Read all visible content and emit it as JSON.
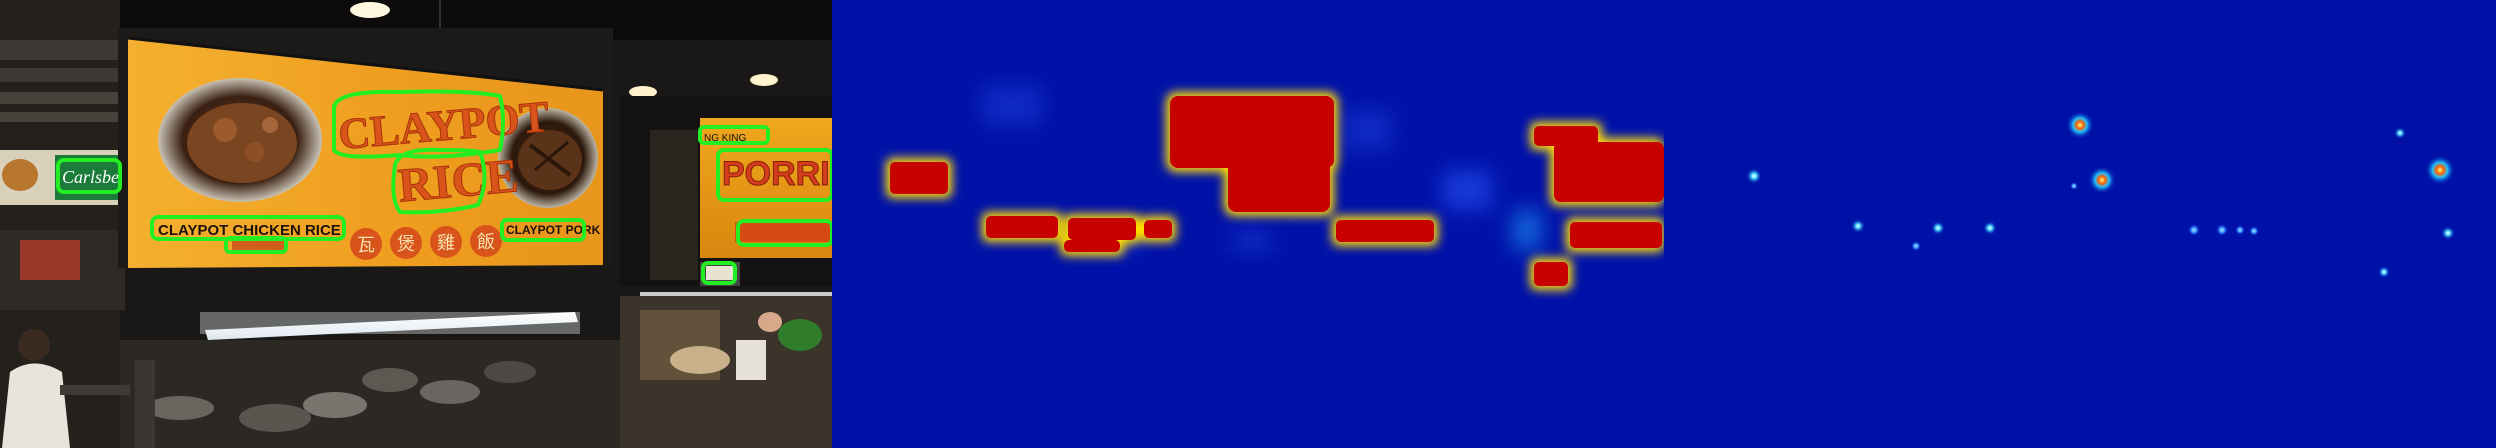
{
  "panels": {
    "photo": {
      "sign_main_line1": "CLAYPOT",
      "sign_main_line2": "RICE",
      "sign_chicken": "CLAYPOT CHICKEN RICE",
      "sign_pork": "CLAYPOT PORK",
      "sign_chinese": [
        "瓦",
        "煲",
        "雞",
        "飯"
      ],
      "sign_right_small": "NG KING",
      "sign_right_big": "PORRID",
      "sign_carlsberg": "Carlsbe"
    }
  },
  "colors": {
    "detection_box": "#22ee22",
    "heat_background": "#0011a8",
    "heat_hot": "#c80000",
    "sign_orange": "#f0a020",
    "sign_lettering": "#d9541a"
  }
}
